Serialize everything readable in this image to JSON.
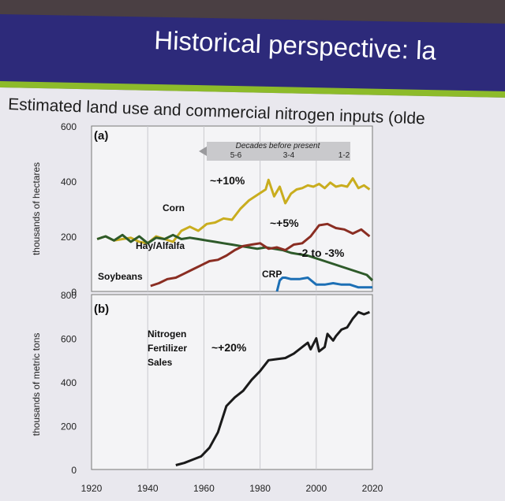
{
  "slide": {
    "title": "Historical perspective: la",
    "subtitle": "Estimated land use and commercial nitrogen inputs (olde",
    "colors": {
      "header": "#2d2a7a",
      "accent_bar": "#8dbb2a",
      "body": "#e9e8ee"
    }
  },
  "chart_data": [
    {
      "type": "line",
      "panel_label": "(a)",
      "ylabel": "thousands of hectares",
      "xlim": [
        1920,
        2020
      ],
      "ylim": [
        0,
        600
      ],
      "yticks": [
        "0",
        "200",
        "400",
        "600"
      ],
      "grid": true,
      "banner": {
        "title": "Decades before present",
        "groups": [
          "5-6",
          "3-4",
          "1-2"
        ]
      },
      "annotations": [
        "~+10%",
        "~+5%",
        "-2 to -3%"
      ],
      "series": [
        {
          "name": "Corn",
          "color": "#c9ad1e",
          "x": [
            1922,
            1925,
            1928,
            1931,
            1934,
            1937,
            1940,
            1943,
            1946,
            1949,
            1952,
            1955,
            1958,
            1961,
            1964,
            1967,
            1970,
            1973,
            1976,
            1979,
            1982,
            1983,
            1985,
            1987,
            1989,
            1991,
            1993,
            1995,
            1997,
            1999,
            2001,
            2003,
            2005,
            2007,
            2009,
            2011,
            2013,
            2015,
            2017,
            2019
          ],
          "y": [
            190,
            200,
            185,
            190,
            195,
            180,
            175,
            200,
            190,
            180,
            220,
            235,
            220,
            245,
            250,
            265,
            260,
            300,
            330,
            350,
            370,
            405,
            345,
            380,
            320,
            355,
            370,
            375,
            385,
            380,
            390,
            375,
            395,
            380,
            385,
            380,
            410,
            375,
            385,
            370
          ]
        },
        {
          "name": "Hay/Alfalfa",
          "color": "#2e5a2a",
          "x": [
            1922,
            1925,
            1928,
            1931,
            1934,
            1937,
            1940,
            1943,
            1946,
            1949,
            1952,
            1955,
            1958,
            1961,
            1964,
            1967,
            1970,
            1973,
            1976,
            1979,
            1982,
            1985,
            1988,
            1991,
            1994,
            1997,
            2000,
            2003,
            2006,
            2009,
            2012,
            2015,
            2018,
            2020
          ],
          "y": [
            190,
            200,
            185,
            205,
            180,
            200,
            175,
            195,
            190,
            205,
            190,
            195,
            190,
            185,
            180,
            175,
            170,
            165,
            160,
            155,
            160,
            155,
            150,
            140,
            135,
            130,
            120,
            110,
            100,
            90,
            80,
            70,
            60,
            40
          ]
        },
        {
          "name": "Soybeans",
          "color": "#8a2d22",
          "x": [
            1941,
            1944,
            1947,
            1950,
            1953,
            1956,
            1959,
            1962,
            1965,
            1968,
            1971,
            1974,
            1977,
            1980,
            1983,
            1986,
            1989,
            1992,
            1995,
            1998,
            2001,
            2004,
            2007,
            2010,
            2013,
            2016,
            2019
          ],
          "y": [
            20,
            30,
            45,
            50,
            65,
            80,
            95,
            110,
            115,
            130,
            150,
            165,
            170,
            175,
            155,
            160,
            150,
            170,
            175,
            200,
            240,
            245,
            230,
            225,
            210,
            225,
            200
          ]
        },
        {
          "name": "CRP",
          "color": "#1c6fb5",
          "x": [
            1986,
            1987,
            1988,
            1989,
            1991,
            1994,
            1997,
            2000,
            2003,
            2006,
            2009,
            2012,
            2015,
            2018,
            2020
          ],
          "y": [
            0,
            40,
            50,
            50,
            45,
            45,
            50,
            25,
            25,
            30,
            25,
            25,
            15,
            15,
            15
          ]
        }
      ]
    },
    {
      "type": "line",
      "panel_label": "(b)",
      "ylabel": "thousands of metric tons",
      "xlim": [
        1920,
        2020
      ],
      "ylim": [
        0,
        800
      ],
      "yticks": [
        "0",
        "200",
        "400",
        "600",
        "800"
      ],
      "xticks": [
        "1920",
        "1940",
        "1960",
        "1980",
        "2000",
        "2020"
      ],
      "grid": true,
      "annotations": [
        "~+20%"
      ],
      "series": [
        {
          "name": "Nitrogen Fertilizer Sales",
          "color": "#1a1a1a",
          "x": [
            1950,
            1953,
            1956,
            1959,
            1962,
            1965,
            1968,
            1971,
            1974,
            1977,
            1980,
            1983,
            1986,
            1989,
            1992,
            1995,
            1997,
            1998,
            2000,
            2001,
            2003,
            2004,
            2006,
            2007,
            2009,
            2011,
            2013,
            2015,
            2017,
            2019
          ],
          "y": [
            20,
            30,
            45,
            60,
            100,
            170,
            290,
            330,
            360,
            410,
            450,
            500,
            505,
            510,
            530,
            560,
            580,
            550,
            600,
            540,
            560,
            620,
            590,
            610,
            640,
            650,
            690,
            720,
            710,
            720
          ]
        }
      ]
    }
  ]
}
